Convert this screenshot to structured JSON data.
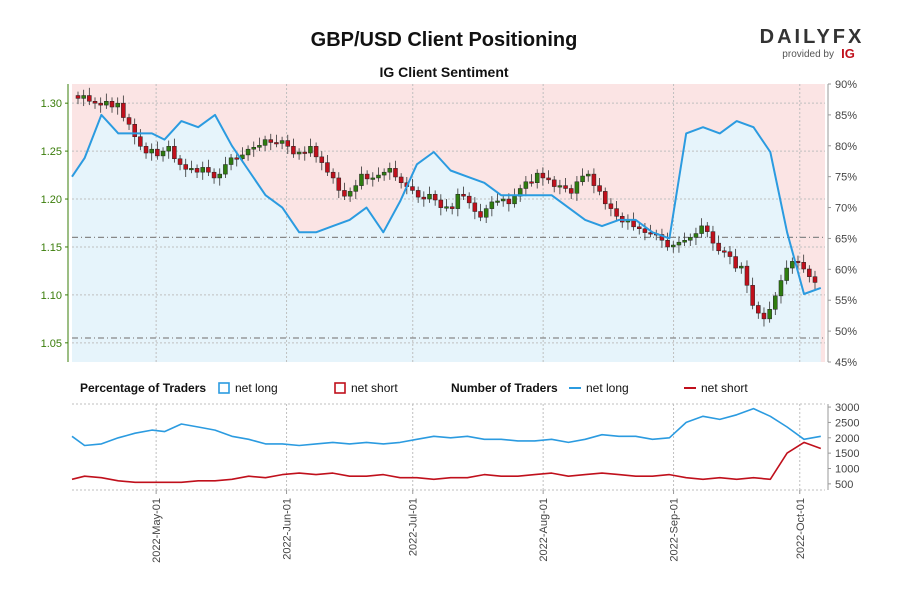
{
  "header": {
    "title": "GBP/USD Client Positioning",
    "subtitle": "IG Client Sentiment",
    "brand_main": "DAILYFX",
    "brand_sub": "provided by",
    "brand_ig": "IG"
  },
  "legend": {
    "pct_title": "Percentage of Traders",
    "pct_long": "net long",
    "pct_short": "net short",
    "num_title": "Number of Traders",
    "num_long": "net long",
    "num_short": "net short"
  },
  "colors": {
    "long": "#2b9be0",
    "short": "#c0101c",
    "bull": "#2f7d10",
    "bear": "#c0101c",
    "long_fill": "#e6f4fb",
    "short_fill": "#fbe4e4"
  },
  "chart_data": [
    {
      "type": "candlestick",
      "title": "GBP/USD Client Positioning",
      "subtitle": "IG Client Sentiment",
      "y_left_ticks": [
        "1.30",
        "1.25",
        "1.20",
        "1.15",
        "1.10",
        "1.05"
      ],
      "y_left_range": [
        1.03,
        1.32
      ],
      "y_right_ticks": [
        "90%",
        "85%",
        "80%",
        "75%",
        "70%",
        "65%",
        "60%",
        "55%",
        "50%",
        "45%"
      ],
      "y_right_range": [
        45,
        90
      ],
      "x_ticks": [
        "2022-May-01",
        "2022-Jun-01",
        "2022-Jul-01",
        "2022-Aug-01",
        "2022-Sep-01",
        "2022-Oct-01"
      ],
      "x_range": [
        "2022-04-11",
        "2022-10-07"
      ],
      "price_reference_lines": [
        1.16,
        1.055
      ],
      "price_close": [
        1.305,
        1.308,
        1.302,
        1.3,
        1.298,
        1.302,
        1.296,
        1.3,
        1.285,
        1.278,
        1.265,
        1.255,
        1.248,
        1.252,
        1.245,
        1.25,
        1.255,
        1.242,
        1.236,
        1.231,
        1.232,
        1.228,
        1.233,
        1.228,
        1.222,
        1.226,
        1.236,
        1.243,
        1.242,
        1.246,
        1.252,
        1.254,
        1.256,
        1.262,
        1.259,
        1.258,
        1.261,
        1.255,
        1.247,
        1.249,
        1.248,
        1.255,
        1.244,
        1.238,
        1.228,
        1.222,
        1.209,
        1.203,
        1.208,
        1.214,
        1.226,
        1.221,
        1.222,
        1.225,
        1.228,
        1.232,
        1.223,
        1.217,
        1.213,
        1.209,
        1.202,
        1.2,
        1.205,
        1.199,
        1.191,
        1.192,
        1.19,
        1.205,
        1.203,
        1.196,
        1.187,
        1.181,
        1.19,
        1.197,
        1.198,
        1.2,
        1.195,
        1.203,
        1.211,
        1.218,
        1.217,
        1.227,
        1.222,
        1.22,
        1.213,
        1.214,
        1.211,
        1.206,
        1.218,
        1.224,
        1.226,
        1.214,
        1.208,
        1.195,
        1.19,
        1.182,
        1.176,
        1.178,
        1.171,
        1.169,
        1.165,
        1.164,
        1.163,
        1.157,
        1.15,
        1.152,
        1.155,
        1.157,
        1.16,
        1.164,
        1.172,
        1.166,
        1.154,
        1.146,
        1.145,
        1.14,
        1.128,
        1.13,
        1.11,
        1.089,
        1.081,
        1.075,
        1.085,
        1.099,
        1.115,
        1.128,
        1.135,
        1.134,
        1.127,
        1.119,
        1.113
      ],
      "positioning_x": [
        "2022-04-11",
        "2022-04-14",
        "2022-04-18",
        "2022-04-22",
        "2022-04-26",
        "2022-04-30",
        "2022-05-03",
        "2022-05-07",
        "2022-05-11",
        "2022-05-15",
        "2022-05-19",
        "2022-05-23",
        "2022-05-27",
        "2022-05-31",
        "2022-06-04",
        "2022-06-08",
        "2022-06-12",
        "2022-06-16",
        "2022-06-20",
        "2022-06-24",
        "2022-06-28",
        "2022-07-02",
        "2022-07-06",
        "2022-07-10",
        "2022-07-14",
        "2022-07-18",
        "2022-07-22",
        "2022-07-26",
        "2022-07-30",
        "2022-08-03",
        "2022-08-07",
        "2022-08-11",
        "2022-08-15",
        "2022-08-19",
        "2022-08-23",
        "2022-08-27",
        "2022-08-31",
        "2022-09-04",
        "2022-09-08",
        "2022-09-12",
        "2022-09-16",
        "2022-09-20",
        "2022-09-24",
        "2022-09-28",
        "2022-10-02",
        "2022-10-06"
      ],
      "series": [
        {
          "name": "net long",
          "values": [
            75,
            78,
            85,
            82,
            82,
            82,
            81,
            84,
            83,
            85,
            80,
            76,
            72,
            70,
            66,
            66,
            67,
            68,
            70,
            66,
            71,
            77,
            79,
            76,
            75,
            74,
            72,
            72,
            72,
            72,
            70,
            68,
            67,
            68,
            68,
            66,
            65,
            82,
            83,
            82,
            84,
            83,
            79,
            66,
            56,
            57
          ]
        },
        {
          "name": "net short",
          "values": [
            25,
            22,
            15,
            18,
            18,
            18,
            19,
            16,
            17,
            15,
            20,
            24,
            28,
            30,
            34,
            34,
            33,
            32,
            30,
            34,
            29,
            23,
            21,
            24,
            25,
            26,
            28,
            28,
            28,
            28,
            30,
            32,
            33,
            32,
            32,
            34,
            35,
            18,
            17,
            18,
            16,
            17,
            21,
            34,
            44,
            43
          ]
        }
      ]
    },
    {
      "type": "line",
      "x": [
        "2022-04-11",
        "2022-04-14",
        "2022-04-18",
        "2022-04-22",
        "2022-04-26",
        "2022-04-30",
        "2022-05-03",
        "2022-05-07",
        "2022-05-11",
        "2022-05-15",
        "2022-05-19",
        "2022-05-23",
        "2022-05-27",
        "2022-05-31",
        "2022-06-04",
        "2022-06-08",
        "2022-06-12",
        "2022-06-16",
        "2022-06-20",
        "2022-06-24",
        "2022-06-28",
        "2022-07-02",
        "2022-07-06",
        "2022-07-10",
        "2022-07-14",
        "2022-07-18",
        "2022-07-22",
        "2022-07-26",
        "2022-07-30",
        "2022-08-03",
        "2022-08-07",
        "2022-08-11",
        "2022-08-15",
        "2022-08-19",
        "2022-08-23",
        "2022-08-27",
        "2022-08-31",
        "2022-09-04",
        "2022-09-08",
        "2022-09-12",
        "2022-09-16",
        "2022-09-20",
        "2022-09-24",
        "2022-09-28",
        "2022-10-02",
        "2022-10-06"
      ],
      "y_ticks": [
        "3000",
        "2500",
        "2000",
        "1500",
        "1000",
        "500"
      ],
      "y_range": [
        300,
        3100
      ],
      "series": [
        {
          "name": "net long",
          "values": [
            2050,
            1750,
            1800,
            2000,
            2150,
            2250,
            2200,
            2450,
            2350,
            2250,
            2050,
            1950,
            1800,
            1800,
            1750,
            1800,
            1850,
            1800,
            1850,
            1800,
            1850,
            1950,
            2050,
            2000,
            2050,
            1950,
            1950,
            1900,
            1900,
            1950,
            1850,
            1950,
            2100,
            2050,
            2050,
            1950,
            2000,
            2500,
            2700,
            2600,
            2750,
            2950,
            2700,
            2350,
            1950,
            2050
          ]
        },
        {
          "name": "net short",
          "values": [
            650,
            750,
            700,
            600,
            550,
            550,
            550,
            550,
            600,
            600,
            650,
            750,
            700,
            800,
            850,
            800,
            850,
            750,
            750,
            800,
            700,
            700,
            650,
            700,
            700,
            800,
            750,
            750,
            800,
            850,
            750,
            800,
            850,
            800,
            750,
            750,
            800,
            700,
            650,
            700,
            650,
            700,
            650,
            1500,
            1850,
            1650
          ]
        }
      ]
    }
  ]
}
